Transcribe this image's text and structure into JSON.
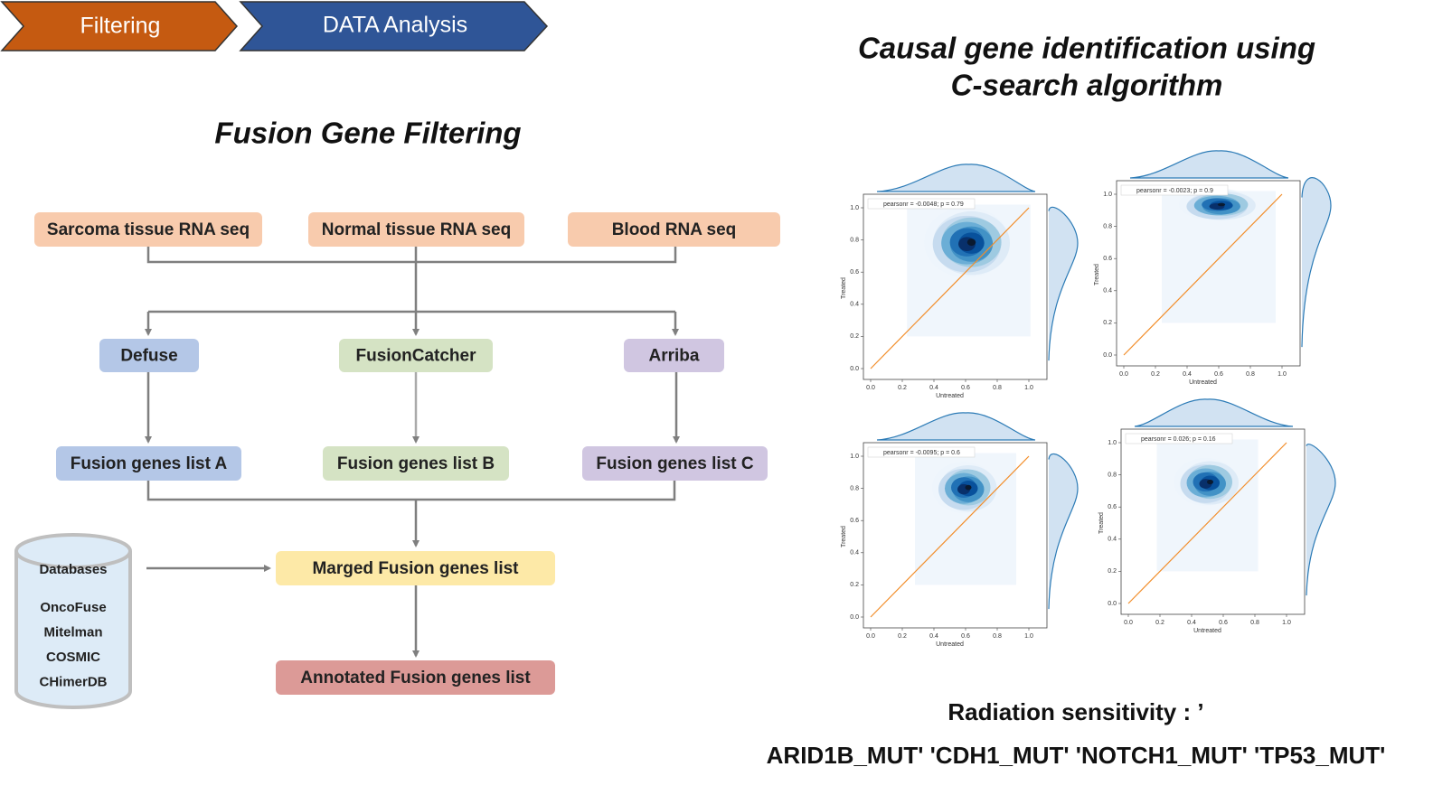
{
  "header": {
    "steps": [
      "Filtering",
      "DATA Analysis"
    ]
  },
  "filtering": {
    "title": "Fusion Gene Filtering",
    "inputs": [
      "Sarcoma tissue RNA seq",
      "Normal tissue RNA seq",
      "Blood RNA seq"
    ],
    "tools": [
      "Defuse",
      "FusionCatcher",
      "Arriba"
    ],
    "lists": [
      "Fusion genes list  A",
      "Fusion genes list  B",
      "Fusion genes list  C"
    ],
    "merged": "Marged Fusion genes list",
    "annotated": "Annotated Fusion genes list",
    "databases": {
      "title": "Databases",
      "items": [
        "OncoFuse",
        "Mitelman",
        "COSMIC",
        "CHimerDB"
      ]
    }
  },
  "analysis": {
    "title_lines": [
      "Causal gene identification using",
      "C-search algorithm"
    ],
    "plot_axes": {
      "xlabel": "Untreated",
      "ylabel": "Treated",
      "ticks": [
        {
          "value": 0,
          "label": "0.0"
        },
        {
          "value": 0.2,
          "label": "0.2"
        },
        {
          "value": 0.4,
          "label": "0.4"
        },
        {
          "value": 0.6,
          "label": "0.6"
        },
        {
          "value": 0.8,
          "label": "0.8"
        },
        {
          "value": 1,
          "label": "1.0"
        }
      ]
    },
    "plots": [
      {
        "annotation": "pearsonr = -0.0048; p = 0.79"
      },
      {
        "annotation": "pearsonr = -0.0023; p = 0.9"
      },
      {
        "annotation": "pearsonr = -0.0095; p = 0.6"
      },
      {
        "annotation": "pearsonr = 0.026; p = 0.16"
      }
    ],
    "caption_lines": [
      "Radiation sensitivity : ’",
      "ARID1B_MUT' 'CDH1_MUT' 'NOTCH1_MUT' 'TP53_MUT'"
    ]
  }
}
